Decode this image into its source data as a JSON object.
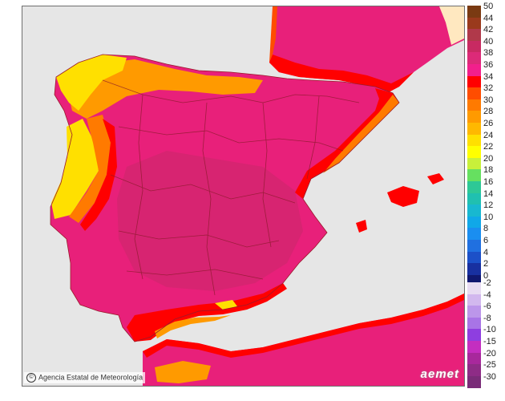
{
  "credit": "Agencia Estatal de Meteorología",
  "logo": "aemet",
  "legend": {
    "positive": [
      {
        "label": "50",
        "color": "#7a3a12"
      },
      {
        "label": "44",
        "color": "#9a3a1c"
      },
      {
        "label": "42",
        "color": "#b0394a"
      },
      {
        "label": "40",
        "color": "#c82a62"
      },
      {
        "label": "38",
        "color": "#dc2a78"
      },
      {
        "label": "36",
        "color": "#f21f8c"
      },
      {
        "label": "34",
        "color": "#ff0000"
      },
      {
        "label": "32",
        "color": "#ff4d00"
      },
      {
        "label": "30",
        "color": "#ff7a00"
      },
      {
        "label": "28",
        "color": "#ff9a00"
      },
      {
        "label": "26",
        "color": "#ffb800"
      },
      {
        "label": "24",
        "color": "#ffe000"
      },
      {
        "label": "22",
        "color": "#ffff00"
      },
      {
        "label": "20",
        "color": "#c8f03a"
      },
      {
        "label": "18",
        "color": "#66e060"
      },
      {
        "label": "16",
        "color": "#2ec896"
      },
      {
        "label": "14",
        "color": "#20c0b0"
      },
      {
        "label": "12",
        "color": "#18b8d0"
      },
      {
        "label": "10",
        "color": "#10a8e8"
      },
      {
        "label": "8",
        "color": "#1a8ef0"
      },
      {
        "label": "6",
        "color": "#2070e0"
      },
      {
        "label": "4",
        "color": "#1c50c8"
      },
      {
        "label": "2",
        "color": "#1830a0"
      },
      {
        "label": "0",
        "color": "#101870"
      }
    ],
    "negative": [
      {
        "label": "-2",
        "color": "#e8dcf2"
      },
      {
        "label": "-4",
        "color": "#d2b8ee"
      },
      {
        "label": "-6",
        "color": "#bc96ea"
      },
      {
        "label": "-8",
        "color": "#a874e6"
      },
      {
        "label": "-10",
        "color": "#8e3ee0"
      },
      {
        "label": "-15",
        "color": "#c42ec0"
      },
      {
        "label": "-20",
        "color": "#a8289c"
      },
      {
        "label": "-25",
        "color": "#8e2c86"
      },
      {
        "label": "-30",
        "color": "#7a2c78"
      }
    ]
  },
  "colors": {
    "sea": "#e6e6e6",
    "land_main": "#e8207a",
    "land_hot": "#c8286a",
    "coast_red": "#ff0000",
    "coast_orange": "#ff8a00",
    "coast_yellow": "#ffe000",
    "border": "#8a1a2a"
  }
}
